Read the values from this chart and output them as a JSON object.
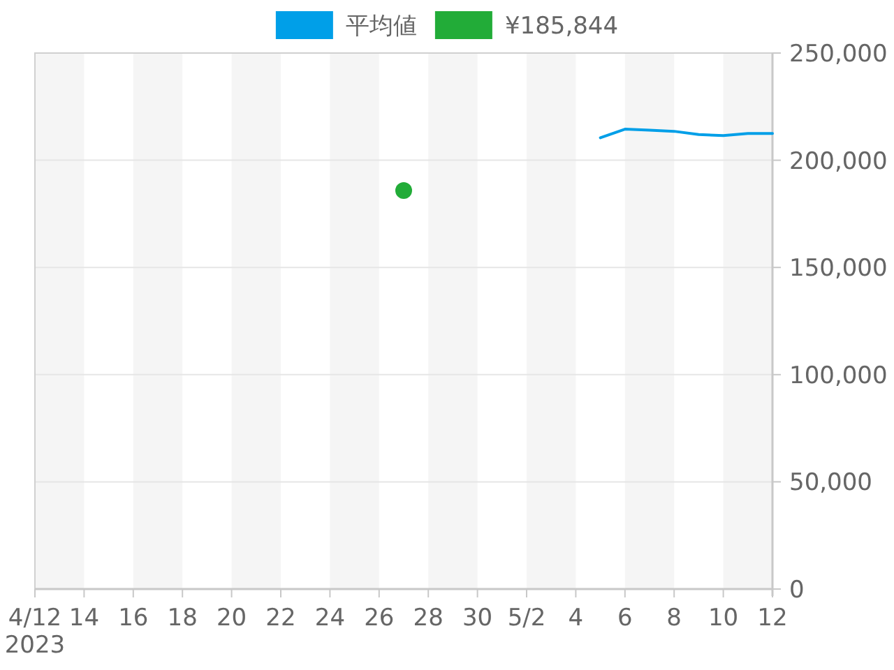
{
  "chart_data": {
    "type": "line",
    "legend": "top",
    "grid": "y",
    "xlim": [
      "2023-04-12",
      "2023-05-12"
    ],
    "xticks": [
      {
        "value": "2023-04-12",
        "label": "4/12\n2023"
      },
      {
        "value": "2023-04-14",
        "label": "14"
      },
      {
        "value": "2023-04-16",
        "label": "16"
      },
      {
        "value": "2023-04-18",
        "label": "18"
      },
      {
        "value": "2023-04-20",
        "label": "20"
      },
      {
        "value": "2023-04-22",
        "label": "22"
      },
      {
        "value": "2023-04-24",
        "label": "24"
      },
      {
        "value": "2023-04-26",
        "label": "26"
      },
      {
        "value": "2023-04-28",
        "label": "28"
      },
      {
        "value": "2023-04-30",
        "label": "30"
      },
      {
        "value": "2023-05-02",
        "label": "5/2"
      },
      {
        "value": "2023-05-04",
        "label": "4"
      },
      {
        "value": "2023-05-06",
        "label": "6"
      },
      {
        "value": "2023-05-08",
        "label": "8"
      },
      {
        "value": "2023-05-10",
        "label": "10"
      },
      {
        "value": "2023-05-12",
        "label": "12"
      }
    ],
    "ylim": [
      0,
      250000
    ],
    "yticks": [
      {
        "value": 0,
        "label": "0"
      },
      {
        "value": 50000,
        "label": "50,000"
      },
      {
        "value": 100000,
        "label": "100,000"
      },
      {
        "value": 150000,
        "label": "150,000"
      },
      {
        "value": 200000,
        "label": "200,000"
      },
      {
        "value": 250000,
        "label": "250,000"
      }
    ],
    "bands": [
      {
        "axis": "x",
        "from": "2023-04-12",
        "to": "2023-04-14",
        "color": "#f5f5f5"
      },
      {
        "axis": "x",
        "from": "2023-04-16",
        "to": "2023-04-18",
        "color": "#f5f5f5"
      },
      {
        "axis": "x",
        "from": "2023-04-20",
        "to": "2023-04-22",
        "color": "#f5f5f5"
      },
      {
        "axis": "x",
        "from": "2023-04-24",
        "to": "2023-04-26",
        "color": "#f5f5f5"
      },
      {
        "axis": "x",
        "from": "2023-04-28",
        "to": "2023-04-30",
        "color": "#f5f5f5"
      },
      {
        "axis": "x",
        "from": "2023-05-02",
        "to": "2023-05-04",
        "color": "#f5f5f5"
      },
      {
        "axis": "x",
        "from": "2023-05-06",
        "to": "2023-05-08",
        "color": "#f5f5f5"
      },
      {
        "axis": "x",
        "from": "2023-05-10",
        "to": "2023-05-12",
        "color": "#f5f5f5"
      }
    ],
    "series": [
      {
        "name": "平均値",
        "color": "#009fe8",
        "x": [
          "2023-05-05",
          "2023-05-06",
          "2023-05-07",
          "2023-05-08",
          "2023-05-09",
          "2023-05-10",
          "2023-05-11",
          "2023-05-12"
        ],
        "values": [
          210500,
          214500,
          214000,
          213500,
          212000,
          211500,
          212500,
          212500
        ]
      },
      {
        "name": "¥185,844",
        "type": "scatter",
        "marker": "circle",
        "color": "#22ac38",
        "x": [
          "2023-04-27"
        ],
        "values": [
          185844
        ]
      }
    ]
  }
}
